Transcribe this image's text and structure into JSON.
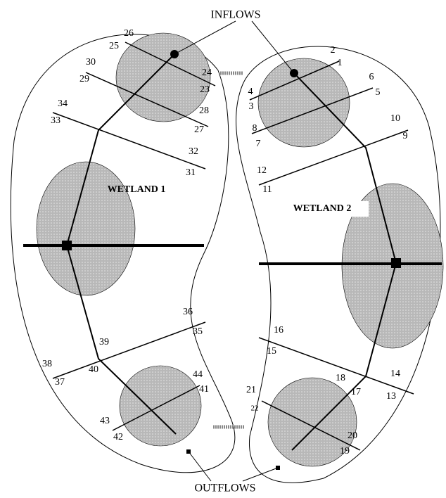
{
  "top_label": "INFLOWS",
  "bottom_label": "OUTFLOWS",
  "wetlands": [
    "WETLAND 1",
    "WETLAND 2"
  ],
  "node_labels": [
    1,
    2,
    3,
    4,
    5,
    6,
    7,
    8,
    9,
    10,
    11,
    12,
    13,
    14,
    15,
    16,
    17,
    18,
    19,
    20,
    21,
    22,
    23,
    24,
    25,
    26,
    27,
    28,
    29,
    30,
    31,
    32,
    33,
    34,
    35,
    36,
    37,
    38,
    39,
    40,
    41,
    42,
    43,
    44
  ]
}
